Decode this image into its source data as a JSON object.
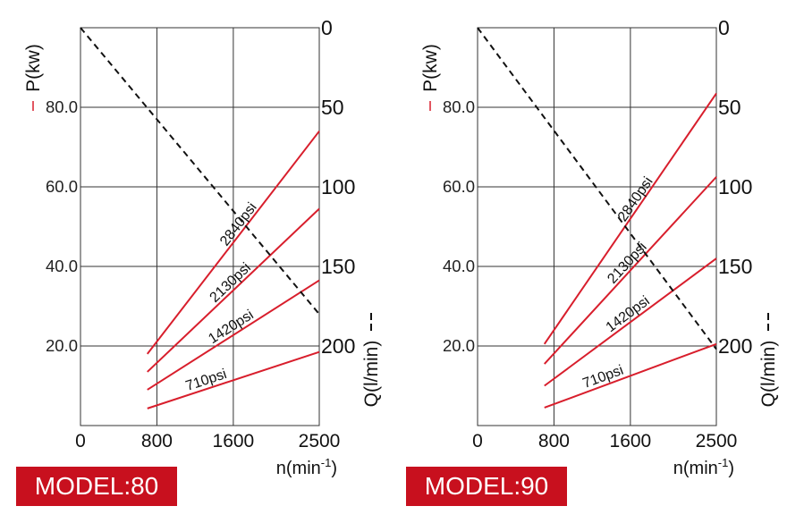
{
  "charts": [
    {
      "model_label": "MODEL:80",
      "power_axis_label": "P(kw)",
      "flow_axis_label": "Q(l/min)",
      "speed_axis_label": "n(min-1)",
      "speed_axis_base": "n(min",
      "speed_axis_exp": "-1",
      "speed_axis_close": ")",
      "power_line_marker": "—",
      "flow_line_marker": "– –"
    },
    {
      "model_label": "MODEL:90",
      "power_axis_label": "P(kw)",
      "flow_axis_label": "Q(l/min)",
      "speed_axis_label": "n(min-1)",
      "speed_axis_base": "n(min",
      "speed_axis_exp": "-1",
      "speed_axis_close": ")",
      "power_line_marker": "—",
      "flow_line_marker": "– –"
    }
  ],
  "chart_data": [
    {
      "type": "line",
      "model": "MODEL:80",
      "xlabel": "n(min-1)",
      "xlim": [
        0,
        2500
      ],
      "x_ticks": [
        "0",
        "800",
        "1600",
        "2500"
      ],
      "ylabel_left": "P(kw)",
      "ylim_left": [
        0,
        100
      ],
      "y_ticks_left": [
        "20.0",
        "40.0",
        "60.0",
        "80.0"
      ],
      "ylabel_right": "Q(l/min)",
      "ylim_right": [
        0,
        250
      ],
      "y_ticks_right": [
        "0",
        "50",
        "100",
        "150",
        "200"
      ],
      "grid": true,
      "colors": {
        "power": "#d81e2c",
        "flow": "#111111",
        "grid": "#333333",
        "badge": "#c8101e"
      },
      "series": [
        {
          "name": "710psi",
          "axis": "left",
          "x": [
            700,
            2500
          ],
          "y": [
            4.3,
            18.5
          ]
        },
        {
          "name": "1420psi",
          "axis": "left",
          "x": [
            700,
            2500
          ],
          "y": [
            9,
            36.5
          ]
        },
        {
          "name": "2130psi",
          "axis": "left",
          "x": [
            700,
            2500
          ],
          "y": [
            13.5,
            54.5
          ]
        },
        {
          "name": "2840psi",
          "axis": "left",
          "x": [
            700,
            2500
          ],
          "y": [
            18,
            74
          ]
        },
        {
          "name": "",
          "axis": "right",
          "style": "dashed",
          "x": [
            0,
            2500
          ],
          "y": [
            0,
            180
          ]
        }
      ]
    },
    {
      "type": "line",
      "model": "MODEL:90",
      "xlabel": "n(min-1)",
      "xlim": [
        0,
        2500
      ],
      "x_ticks": [
        "0",
        "800",
        "1600",
        "2500"
      ],
      "ylabel_left": "P(kw)",
      "ylim_left": [
        0,
        100
      ],
      "y_ticks_left": [
        "20.0",
        "40.0",
        "60.0",
        "80.0"
      ],
      "ylabel_right": "Q(l/min)",
      "ylim_right": [
        0,
        250
      ],
      "y_ticks_right": [
        "0",
        "50",
        "100",
        "150",
        "200"
      ],
      "grid": true,
      "colors": {
        "power": "#d81e2c",
        "flow": "#111111",
        "grid": "#333333",
        "badge": "#c8101e"
      },
      "series": [
        {
          "name": "710psi",
          "axis": "left",
          "x": [
            700,
            2500
          ],
          "y": [
            4.5,
            20.5
          ]
        },
        {
          "name": "1420psi",
          "axis": "left",
          "x": [
            700,
            2500
          ],
          "y": [
            10,
            42
          ]
        },
        {
          "name": "2130psi",
          "axis": "left",
          "x": [
            700,
            2500
          ],
          "y": [
            15.5,
            62.5
          ]
        },
        {
          "name": "2840psi",
          "axis": "left",
          "x": [
            700,
            2500
          ],
          "y": [
            20.5,
            83.5
          ]
        },
        {
          "name": "",
          "axis": "right",
          "style": "dashed",
          "x": [
            0,
            2500
          ],
          "y": [
            0,
            202
          ]
        }
      ]
    }
  ]
}
